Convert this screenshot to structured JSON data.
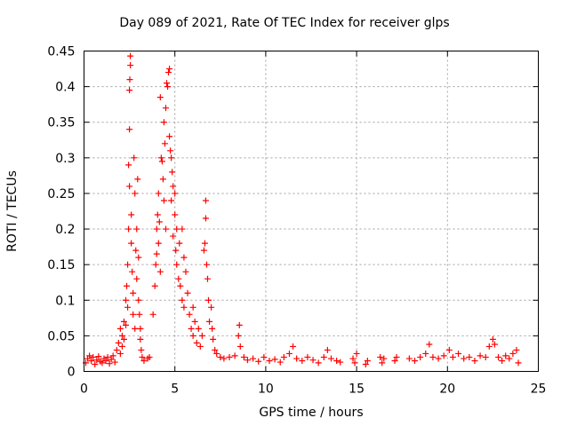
{
  "chart_data": {
    "type": "scatter",
    "title": "Day 089 of 2021, Rate Of TEC Index for receiver glps",
    "xlabel": "GPS time / hours",
    "ylabel": "ROTI / TECUs",
    "xlim": [
      0,
      25
    ],
    "ylim": [
      0,
      0.45
    ],
    "xticks": [
      0,
      5,
      10,
      15,
      20,
      25
    ],
    "yticks": [
      0,
      0.05,
      0.1,
      0.15,
      0.2,
      0.25,
      0.3,
      0.35,
      0.4,
      0.45
    ],
    "ytick_labels": [
      "0",
      "0.05",
      "0.1",
      "0.15",
      "0.2",
      "0.25",
      "0.3",
      "0.35",
      "0.4",
      "0.45"
    ],
    "grid": true,
    "marker": "plus",
    "color": "#ff0000",
    "series": [
      {
        "points": [
          [
            0.1,
            0.012
          ],
          [
            0.2,
            0.018
          ],
          [
            0.3,
            0.022
          ],
          [
            0.4,
            0.015
          ],
          [
            0.5,
            0.02
          ],
          [
            0.6,
            0.01
          ],
          [
            0.7,
            0.016
          ],
          [
            0.8,
            0.021
          ],
          [
            0.9,
            0.014
          ],
          [
            1.0,
            0.012
          ],
          [
            1.1,
            0.018
          ],
          [
            1.2,
            0.015
          ],
          [
            1.3,
            0.02
          ],
          [
            1.4,
            0.011
          ],
          [
            1.5,
            0.017
          ],
          [
            1.6,
            0.022
          ],
          [
            1.7,
            0.013
          ],
          [
            1.8,
            0.03
          ],
          [
            1.9,
            0.04
          ],
          [
            2.0,
            0.025
          ],
          [
            2.0,
            0.06
          ],
          [
            2.1,
            0.05
          ],
          [
            2.1,
            0.035
          ],
          [
            2.2,
            0.045
          ],
          [
            2.2,
            0.07
          ],
          [
            2.3,
            0.065
          ],
          [
            2.3,
            0.1
          ],
          [
            2.35,
            0.12
          ],
          [
            2.4,
            0.15
          ],
          [
            2.4,
            0.09
          ],
          [
            2.45,
            0.2
          ],
          [
            2.45,
            0.29
          ],
          [
            2.5,
            0.34
          ],
          [
            2.5,
            0.395
          ],
          [
            2.52,
            0.41
          ],
          [
            2.55,
            0.43
          ],
          [
            2.55,
            0.443
          ],
          [
            2.5,
            0.26
          ],
          [
            2.6,
            0.22
          ],
          [
            2.6,
            0.18
          ],
          [
            2.65,
            0.14
          ],
          [
            2.7,
            0.11
          ],
          [
            2.7,
            0.08
          ],
          [
            2.75,
            0.3
          ],
          [
            2.8,
            0.25
          ],
          [
            2.8,
            0.06
          ],
          [
            2.85,
            0.17
          ],
          [
            2.9,
            0.2
          ],
          [
            2.9,
            0.13
          ],
          [
            2.95,
            0.27
          ],
          [
            3.0,
            0.16
          ],
          [
            3.0,
            0.1
          ],
          [
            3.05,
            0.08
          ],
          [
            3.1,
            0.06
          ],
          [
            3.1,
            0.045
          ],
          [
            3.15,
            0.03
          ],
          [
            3.2,
            0.02
          ],
          [
            3.3,
            0.015
          ],
          [
            3.5,
            0.018
          ],
          [
            3.6,
            0.02
          ],
          [
            3.8,
            0.08
          ],
          [
            3.9,
            0.12
          ],
          [
            3.95,
            0.15
          ],
          [
            4.0,
            0.165
          ],
          [
            4.0,
            0.2
          ],
          [
            4.05,
            0.22
          ],
          [
            4.1,
            0.18
          ],
          [
            4.1,
            0.25
          ],
          [
            4.15,
            0.21
          ],
          [
            4.2,
            0.14
          ],
          [
            4.2,
            0.385
          ],
          [
            4.25,
            0.3
          ],
          [
            4.3,
            0.295
          ],
          [
            4.35,
            0.27
          ],
          [
            4.4,
            0.24
          ],
          [
            4.4,
            0.35
          ],
          [
            4.45,
            0.32
          ],
          [
            4.5,
            0.37
          ],
          [
            4.5,
            0.2
          ],
          [
            4.55,
            0.405
          ],
          [
            4.6,
            0.4
          ],
          [
            4.65,
            0.42
          ],
          [
            4.7,
            0.425
          ],
          [
            4.7,
            0.33
          ],
          [
            4.75,
            0.31
          ],
          [
            4.8,
            0.3
          ],
          [
            4.8,
            0.24
          ],
          [
            4.85,
            0.28
          ],
          [
            4.9,
            0.26
          ],
          [
            4.9,
            0.19
          ],
          [
            5.0,
            0.25
          ],
          [
            5.0,
            0.22
          ],
          [
            5.05,
            0.17
          ],
          [
            5.1,
            0.15
          ],
          [
            5.1,
            0.2
          ],
          [
            5.2,
            0.13
          ],
          [
            5.25,
            0.18
          ],
          [
            5.3,
            0.12
          ],
          [
            5.4,
            0.1
          ],
          [
            5.4,
            0.2
          ],
          [
            5.5,
            0.09
          ],
          [
            5.5,
            0.16
          ],
          [
            5.6,
            0.14
          ],
          [
            5.7,
            0.11
          ],
          [
            5.8,
            0.08
          ],
          [
            5.9,
            0.06
          ],
          [
            6.0,
            0.05
          ],
          [
            6.0,
            0.09
          ],
          [
            6.1,
            0.07
          ],
          [
            6.2,
            0.04
          ],
          [
            6.3,
            0.06
          ],
          [
            6.4,
            0.035
          ],
          [
            6.5,
            0.05
          ],
          [
            6.6,
            0.17
          ],
          [
            6.65,
            0.18
          ],
          [
            6.7,
            0.24
          ],
          [
            6.7,
            0.215
          ],
          [
            6.75,
            0.15
          ],
          [
            6.8,
            0.13
          ],
          [
            6.85,
            0.1
          ],
          [
            6.9,
            0.07
          ],
          [
            7.0,
            0.09
          ],
          [
            7.05,
            0.06
          ],
          [
            7.1,
            0.045
          ],
          [
            7.2,
            0.03
          ],
          [
            7.3,
            0.025
          ],
          [
            7.5,
            0.02
          ],
          [
            7.7,
            0.018
          ],
          [
            8.0,
            0.02
          ],
          [
            8.3,
            0.022
          ],
          [
            8.5,
            0.05
          ],
          [
            8.55,
            0.065
          ],
          [
            8.6,
            0.035
          ],
          [
            8.8,
            0.02
          ],
          [
            9.0,
            0.016
          ],
          [
            9.3,
            0.018
          ],
          [
            9.6,
            0.014
          ],
          [
            9.9,
            0.02
          ],
          [
            10.2,
            0.015
          ],
          [
            10.5,
            0.017
          ],
          [
            10.8,
            0.013
          ],
          [
            11.0,
            0.02
          ],
          [
            11.3,
            0.025
          ],
          [
            11.5,
            0.035
          ],
          [
            11.7,
            0.018
          ],
          [
            12.0,
            0.015
          ],
          [
            12.3,
            0.02
          ],
          [
            12.6,
            0.016
          ],
          [
            12.9,
            0.012
          ],
          [
            13.2,
            0.02
          ],
          [
            13.4,
            0.03
          ],
          [
            13.6,
            0.018
          ],
          [
            13.9,
            0.015
          ],
          [
            14.1,
            0.013
          ],
          [
            14.8,
            0.018
          ],
          [
            14.9,
            0.012
          ],
          [
            15.0,
            0.025
          ],
          [
            15.5,
            0.01
          ],
          [
            15.6,
            0.015
          ],
          [
            16.3,
            0.02
          ],
          [
            16.4,
            0.012
          ],
          [
            16.5,
            0.018
          ],
          [
            17.1,
            0.015
          ],
          [
            17.2,
            0.02
          ],
          [
            17.9,
            0.018
          ],
          [
            18.2,
            0.015
          ],
          [
            18.5,
            0.02
          ],
          [
            18.8,
            0.025
          ],
          [
            19.0,
            0.038
          ],
          [
            19.2,
            0.02
          ],
          [
            19.5,
            0.018
          ],
          [
            19.8,
            0.022
          ],
          [
            20.1,
            0.03
          ],
          [
            20.3,
            0.02
          ],
          [
            20.6,
            0.025
          ],
          [
            20.9,
            0.018
          ],
          [
            21.2,
            0.02
          ],
          [
            21.5,
            0.015
          ],
          [
            21.8,
            0.022
          ],
          [
            22.1,
            0.02
          ],
          [
            22.3,
            0.035
          ],
          [
            22.5,
            0.045
          ],
          [
            22.6,
            0.038
          ],
          [
            22.8,
            0.02
          ],
          [
            23.0,
            0.015
          ],
          [
            23.2,
            0.022
          ],
          [
            23.4,
            0.018
          ],
          [
            23.6,
            0.025
          ],
          [
            23.8,
            0.03
          ],
          [
            23.9,
            0.012
          ]
        ]
      }
    ]
  }
}
